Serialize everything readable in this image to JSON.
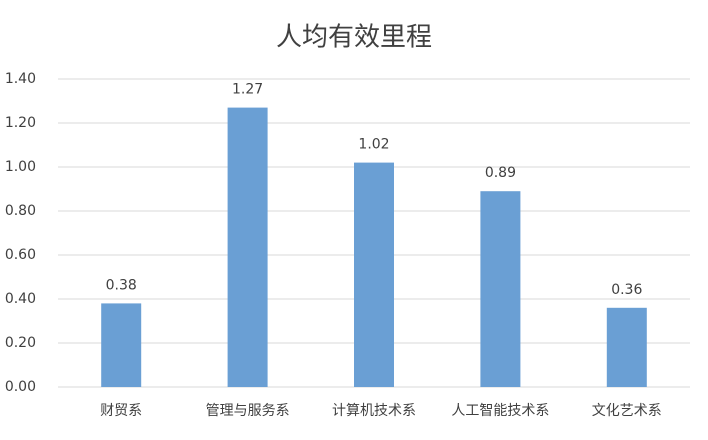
{
  "chart_data": {
    "type": "bar",
    "title": "人均有效里程",
    "categories": [
      "财贸系",
      "管理与服务系",
      "计算机技术系",
      "人工智能技术系",
      "文化艺术系"
    ],
    "values": [
      0.38,
      1.27,
      1.02,
      0.89,
      0.36
    ],
    "color": "#6a9fd4",
    "ylim": [
      0,
      1.4
    ],
    "yticks": [
      {
        "value": 0,
        "label": "0.00"
      },
      {
        "value": 0.2,
        "label": "0.20"
      },
      {
        "value": 0.4,
        "label": "0.40"
      },
      {
        "value": 0.6,
        "label": "0.60"
      },
      {
        "value": 0.8,
        "label": "0.80"
      },
      {
        "value": 1,
        "label": "1.00"
      },
      {
        "value": 1.2,
        "label": "1.20"
      },
      {
        "value": 1.4,
        "label": "1.40"
      }
    ],
    "grid": true,
    "data_labels": true
  }
}
